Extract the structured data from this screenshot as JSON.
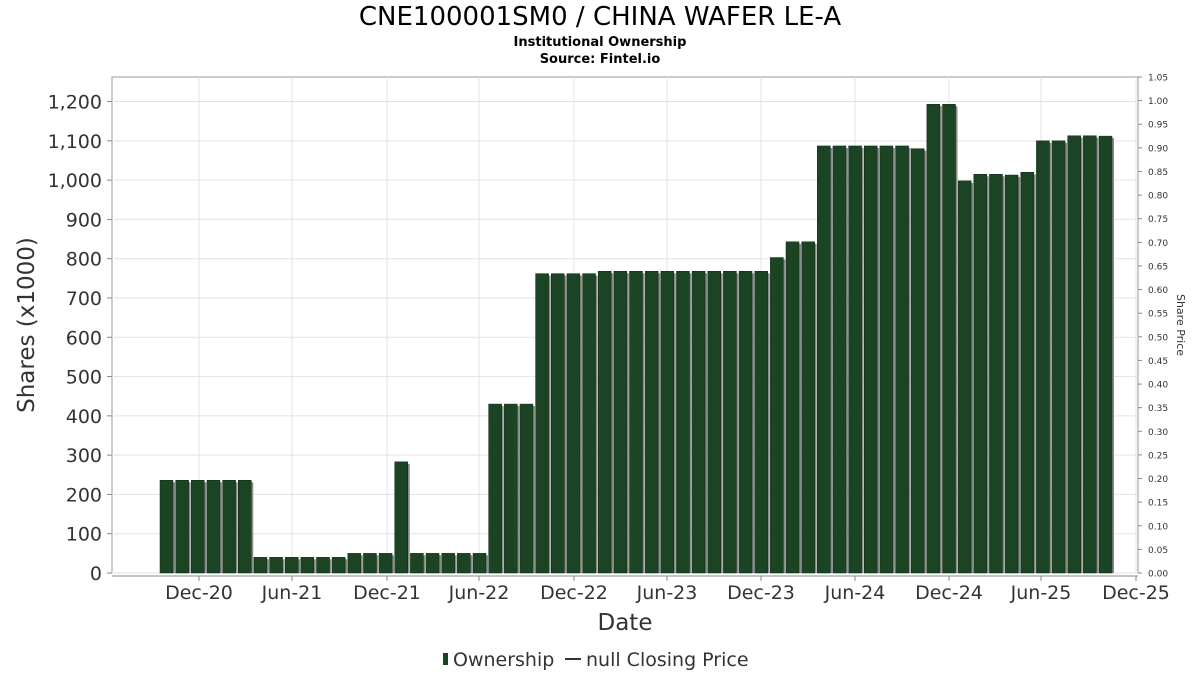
{
  "chart_data": {
    "type": "bar",
    "title": "CNE100001SM0 / CHINA WAFER LE-A",
    "subtitle": "Institutional Ownership",
    "source": "Source: Fintel.io",
    "xlabel": "Date",
    "ylabel": "Shares (x1000)",
    "y2label": "Share Price",
    "ylim": [
      0,
      1262.5
    ],
    "y2lim": [
      0,
      1.05
    ],
    "yticks": [
      "0",
      "100",
      "200",
      "300",
      "400",
      "500",
      "600",
      "700",
      "800",
      "900",
      "1,000",
      "1,100",
      "1,200"
    ],
    "y2ticks": [
      "0.00",
      "0.05",
      "0.10",
      "0.15",
      "0.20",
      "0.25",
      "0.30",
      "0.35",
      "0.40",
      "0.45",
      "0.50",
      "0.55",
      "0.60",
      "0.65",
      "0.70",
      "0.75",
      "0.80",
      "0.85",
      "0.90",
      "0.95",
      "1.00",
      "1.05"
    ],
    "xticks": [
      "Dec-20",
      "Jun-21",
      "Dec-21",
      "Jun-22",
      "Dec-22",
      "Jun-23",
      "Dec-23",
      "Jun-24",
      "Dec-24",
      "Jun-25",
      "Dec-25"
    ],
    "x_range_months": [
      2020.2,
      2025.97
    ],
    "grid": true,
    "legend_position": "bottom",
    "series": [
      {
        "name": "Ownership",
        "color": "#1a4423",
        "values": [
          236,
          236,
          236,
          236,
          236,
          236,
          40,
          40,
          40,
          40,
          40,
          40,
          50,
          50,
          50,
          283,
          50,
          50,
          50,
          50,
          50,
          430,
          430,
          430,
          762,
          762,
          762,
          762,
          768,
          768,
          768,
          768,
          768,
          768,
          768,
          768,
          768,
          768,
          768,
          803,
          843,
          843,
          1087,
          1087,
          1087,
          1087,
          1087,
          1087,
          1080,
          1193,
          1193,
          998,
          1015,
          1015,
          1013,
          1020,
          1100,
          1100,
          1113,
          1113,
          1112
        ]
      },
      {
        "name": "null Closing Price",
        "color": "#333333",
        "values": []
      }
    ]
  }
}
